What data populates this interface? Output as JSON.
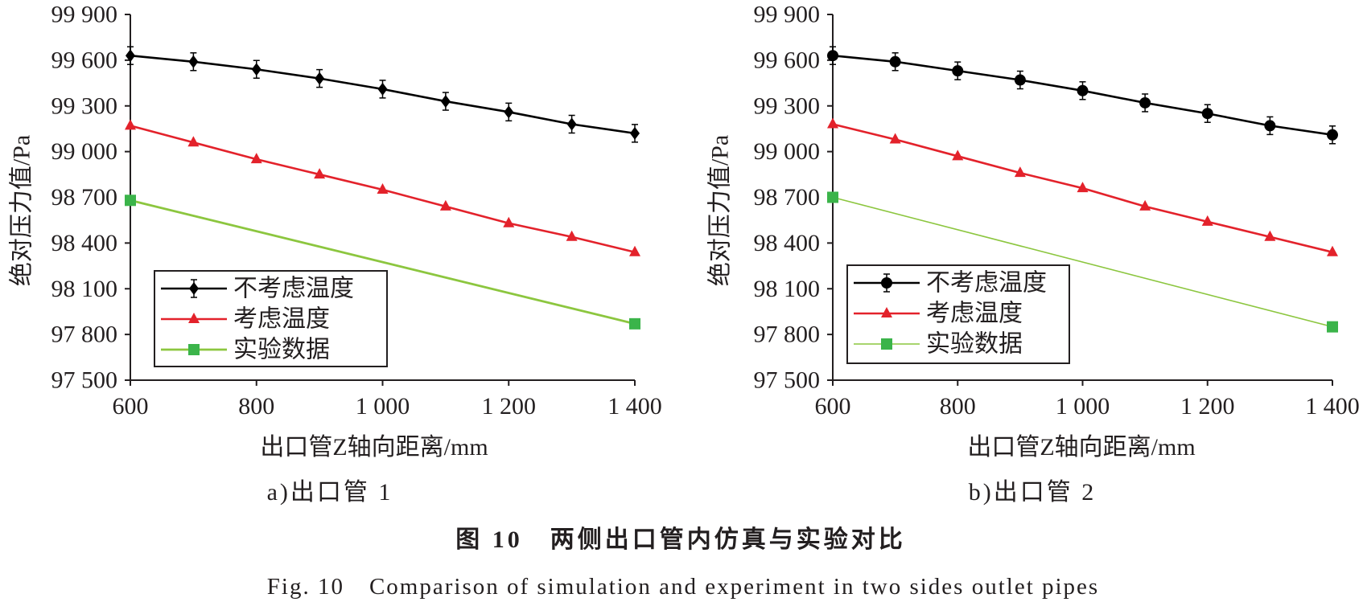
{
  "figure": {
    "caption_cn": "图 10　两侧出口管内仿真与实验对比",
    "caption_en": "Fig. 10　Comparison of simulation and experiment in two sides outlet pipes"
  },
  "chart_data": [
    {
      "type": "line",
      "subcaption": "a)出口管 1",
      "xlabel": "出口管Z轴向距离/mm",
      "ylabel": "绝对压力值/Pa",
      "xlim": [
        600,
        1400
      ],
      "ylim": [
        97500,
        99900
      ],
      "grid": false,
      "legend_position": "lower-left",
      "xticks": {
        "values": [
          600,
          800,
          1000,
          1200,
          1400
        ],
        "labels": [
          "600",
          "800",
          "1 000",
          "1 200",
          "1 400"
        ]
      },
      "yticks": {
        "values": [
          99900,
          99600,
          99300,
          99000,
          98700,
          98400,
          98100,
          97800,
          97500
        ],
        "labels": [
          "99 900",
          "99 600",
          "99 300",
          "99 000",
          "98 700",
          "98 400",
          "98 100",
          "97 800",
          "97 500"
        ]
      },
      "series": [
        {
          "name": "不考虑温度",
          "color": "#000000",
          "marker_color": "#000000",
          "marker": "diamond",
          "x": [
            600,
            700,
            800,
            900,
            1000,
            1100,
            1200,
            1300,
            1400
          ],
          "values": [
            99630,
            99590,
            99540,
            99480,
            99410,
            99330,
            99260,
            99180,
            99120
          ]
        },
        {
          "name": "考虑温度",
          "color": "#e3222b",
          "marker_color": "#e3222b",
          "marker": "triangle",
          "x": [
            600,
            700,
            800,
            900,
            1000,
            1100,
            1200,
            1300,
            1400
          ],
          "values": [
            99170,
            99060,
            98950,
            98850,
            98750,
            98640,
            98530,
            98440,
            98340
          ]
        },
        {
          "name": "实验数据",
          "color": "#8cc63f",
          "marker_color": "#3bb44a",
          "marker": "square",
          "x": [
            600,
            1400
          ],
          "values": [
            98680,
            97870
          ]
        }
      ]
    },
    {
      "type": "line",
      "subcaption": "b)出口管 2",
      "xlabel": "出口管Z轴向距离/mm",
      "ylabel": "绝对压力值/Pa",
      "xlim": [
        600,
        1400
      ],
      "ylim": [
        97500,
        99900
      ],
      "grid": false,
      "legend_position": "lower-left",
      "xticks": {
        "values": [
          600,
          800,
          1000,
          1200,
          1400
        ],
        "labels": [
          "600",
          "800",
          "1 000",
          "1 200",
          "1 400"
        ]
      },
      "yticks": {
        "values": [
          99900,
          99600,
          99300,
          99000,
          98700,
          98400,
          98100,
          97800,
          97500
        ],
        "labels": [
          "99 900",
          "99 600",
          "99 300",
          "99 000",
          "98 700",
          "98 400",
          "98 100",
          "97 800",
          "97 500"
        ]
      },
      "series": [
        {
          "name": "不考虑温度",
          "color": "#000000",
          "marker_color": "#000000",
          "marker": "circle",
          "x": [
            600,
            700,
            800,
            900,
            1000,
            1100,
            1200,
            1300,
            1400
          ],
          "values": [
            99630,
            99590,
            99530,
            99470,
            99400,
            99320,
            99250,
            99170,
            99110
          ]
        },
        {
          "name": "考虑温度",
          "color": "#e3222b",
          "marker_color": "#e3222b",
          "marker": "triangle",
          "x": [
            600,
            700,
            800,
            900,
            1000,
            1100,
            1200,
            1300,
            1400
          ],
          "values": [
            99180,
            99080,
            98970,
            98860,
            98760,
            98640,
            98540,
            98440,
            98340
          ]
        },
        {
          "name": "实验数据",
          "color": "#8cc63f",
          "marker_color": "#3bb44a",
          "marker": "square",
          "x": [
            600,
            1400
          ],
          "values": [
            98700,
            97850
          ]
        }
      ]
    }
  ]
}
